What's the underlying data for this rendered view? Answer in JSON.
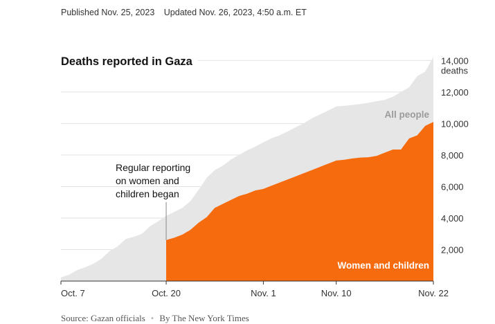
{
  "header": {
    "published": "Published Nov. 25, 2023",
    "updated": "Updated Nov. 26, 2023, 4:50 a.m. ET"
  },
  "footer": {
    "source": "Source: Gazan officials",
    "byline": "By The New York Times"
  },
  "colors": {
    "all_people": "#e6e6e6",
    "women_children": "#f76b0f",
    "all_people_label": "#9a9a9a",
    "women_children_label": "#ffffff"
  },
  "chart_data": {
    "type": "area",
    "title": "Deaths reported in Gaza",
    "y_unit": "deaths",
    "ylim": [
      0,
      14500
    ],
    "y_ticks": [
      2000,
      4000,
      6000,
      8000,
      10000,
      12000,
      14000
    ],
    "y_tick_labels": [
      "2,000",
      "4,000",
      "6,000",
      "8,000",
      "10,000",
      "12,000",
      "14,000"
    ],
    "x_range": [
      "2023-10-07",
      "2023-11-22"
    ],
    "x_ticks": [
      "2023-10-07",
      "2023-10-20",
      "2023-11-01",
      "2023-11-10",
      "2023-11-22"
    ],
    "x_tick_labels": [
      "Oct. 7",
      "Oct. 20",
      "Nov. 1",
      "Nov. 10",
      "Nov. 22"
    ],
    "grid": true,
    "series": [
      {
        "name": "All people",
        "x": [
          "2023-10-07",
          "2023-10-08",
          "2023-10-09",
          "2023-10-10",
          "2023-10-11",
          "2023-10-12",
          "2023-10-13",
          "2023-10-14",
          "2023-10-15",
          "2023-10-16",
          "2023-10-17",
          "2023-10-18",
          "2023-10-19",
          "2023-10-20",
          "2023-10-21",
          "2023-10-22",
          "2023-10-23",
          "2023-10-24",
          "2023-10-25",
          "2023-10-26",
          "2023-10-27",
          "2023-10-28",
          "2023-10-29",
          "2023-10-30",
          "2023-10-31",
          "2023-11-01",
          "2023-11-02",
          "2023-11-03",
          "2023-11-04",
          "2023-11-05",
          "2023-11-06",
          "2023-11-07",
          "2023-11-08",
          "2023-11-09",
          "2023-11-10",
          "2023-11-11",
          "2023-11-12",
          "2023-11-13",
          "2023-11-14",
          "2023-11-15",
          "2023-11-16",
          "2023-11-17",
          "2023-11-18",
          "2023-11-19",
          "2023-11-20",
          "2023-11-21",
          "2023-11-22"
        ],
        "values": [
          230,
          410,
          690,
          880,
          1100,
          1420,
          1900,
          2200,
          2670,
          2810,
          3000,
          3480,
          3790,
          4140,
          4390,
          4650,
          5080,
          5790,
          6550,
          7050,
          7330,
          7710,
          8010,
          8300,
          8530,
          8810,
          9060,
          9250,
          9490,
          9770,
          10020,
          10330,
          10570,
          10820,
          11080,
          11120,
          11180,
          11240,
          11320,
          11420,
          11500,
          11700,
          12000,
          12300,
          13000,
          13300,
          14230
        ]
      },
      {
        "name": "Women and children",
        "x": [
          "2023-10-20",
          "2023-10-21",
          "2023-10-22",
          "2023-10-23",
          "2023-10-24",
          "2023-10-25",
          "2023-10-26",
          "2023-10-27",
          "2023-10-28",
          "2023-10-29",
          "2023-10-30",
          "2023-10-31",
          "2023-11-01",
          "2023-11-02",
          "2023-11-03",
          "2023-11-04",
          "2023-11-05",
          "2023-11-06",
          "2023-11-07",
          "2023-11-08",
          "2023-11-09",
          "2023-11-10",
          "2023-11-11",
          "2023-11-12",
          "2023-11-13",
          "2023-11-14",
          "2023-11-15",
          "2023-11-16",
          "2023-11-17",
          "2023-11-18",
          "2023-11-19",
          "2023-11-20",
          "2023-11-21",
          "2023-11-22"
        ],
        "values": [
          2600,
          2750,
          2950,
          3250,
          3700,
          4050,
          4650,
          4900,
          5150,
          5400,
          5550,
          5750,
          5850,
          6050,
          6250,
          6450,
          6650,
          6850,
          7050,
          7250,
          7450,
          7650,
          7700,
          7780,
          7840,
          7860,
          7950,
          8150,
          8350,
          8350,
          9050,
          9250,
          9850,
          10100
        ]
      }
    ],
    "annotations": [
      {
        "x": "2023-10-20",
        "lines": [
          "Regular reporting",
          "on women and",
          "children began"
        ]
      }
    ]
  }
}
